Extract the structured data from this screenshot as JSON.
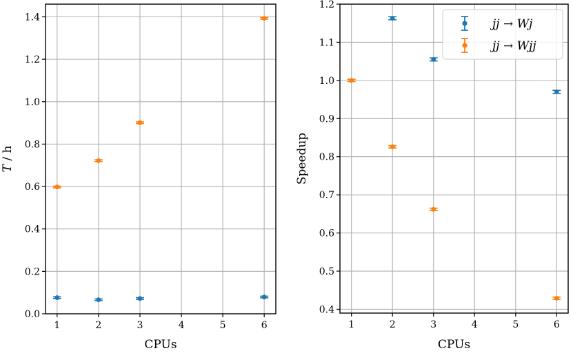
{
  "chart_data": [
    {
      "type": "scatter",
      "panel": "left",
      "xlabel": "CPUs",
      "ylabel": "T / h",
      "ylabel_parts": {
        "var": "T",
        "rest": " / h"
      },
      "xlim": [
        0.72,
        6.28
      ],
      "ylim": [
        0.0,
        1.46
      ],
      "xticks": [
        1,
        2,
        3,
        4,
        5,
        6
      ],
      "xtick_labels": [
        "1",
        "2",
        "3",
        "4",
        "5",
        "6"
      ],
      "yticks": [
        0.0,
        0.2,
        0.4,
        0.6,
        0.8,
        1.0,
        1.2,
        1.4
      ],
      "ytick_labels": [
        "0.0",
        "0.2",
        "0.4",
        "0.6",
        "0.8",
        "1.0",
        "1.2",
        "1.4"
      ],
      "grid": true,
      "series": [
        {
          "name": "jj → Wj",
          "color": "#1f77b4",
          "x": [
            1,
            2,
            3,
            6
          ],
          "y": [
            0.076,
            0.066,
            0.072,
            0.079
          ],
          "yerr": [
            0.004,
            0.004,
            0.004,
            0.004
          ]
        },
        {
          "name": "jj → Wjj",
          "color": "#ff7f0e",
          "x": [
            1,
            2,
            3,
            6
          ],
          "y": [
            0.598,
            0.722,
            0.901,
            1.393
          ],
          "yerr": [
            0.004,
            0.004,
            0.004,
            0.004
          ]
        }
      ]
    },
    {
      "type": "scatter",
      "panel": "right",
      "xlabel": "CPUs",
      "ylabel": "Speedup",
      "xlim": [
        0.72,
        6.28
      ],
      "ylim": [
        0.39,
        1.2
      ],
      "xticks": [
        1,
        2,
        3,
        4,
        5,
        6
      ],
      "xtick_labels": [
        "1",
        "2",
        "3",
        "4",
        "5",
        "6"
      ],
      "yticks": [
        0.4,
        0.5,
        0.6,
        0.7,
        0.8,
        0.9,
        1.0,
        1.1,
        1.2
      ],
      "ytick_labels": [
        "0.4",
        "0.5",
        "0.6",
        "0.7",
        "0.8",
        "0.9",
        "1.0",
        "1.1",
        "1.2"
      ],
      "grid": true,
      "legend_position": "top-right",
      "series": [
        {
          "name": "jj → Wj",
          "color": "#1f77b4",
          "x": [
            2,
            3,
            6
          ],
          "y": [
            1.163,
            1.055,
            0.97
          ],
          "yerr": [
            0.004,
            0.004,
            0.004
          ]
        },
        {
          "name": "jj → Wjj",
          "color": "#ff7f0e",
          "x": [
            1,
            2,
            3,
            6
          ],
          "y": [
            1.0,
            0.826,
            0.662,
            0.429
          ],
          "yerr": [
            0.003,
            0.003,
            0.003,
            0.003
          ]
        }
      ],
      "legend": [
        {
          "label_lhs": "jj",
          "arrow": "→",
          "label_rhs": "Wj",
          "color": "#1f77b4"
        },
        {
          "label_lhs": "jj",
          "arrow": "→",
          "label_rhs": "Wjj",
          "color": "#ff7f0e"
        }
      ]
    }
  ]
}
